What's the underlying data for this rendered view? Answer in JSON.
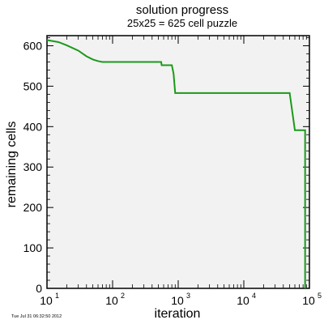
{
  "colors": {
    "background": "#ffffff",
    "plot_background": "#f2f2f2",
    "series": "#1a9a1a",
    "axis": "#000000"
  },
  "footer": {
    "timestamp": "Tue Jul 31 06:32:50 2012"
  },
  "chart_data": {
    "type": "line",
    "title": "solution progress",
    "subtitle": "25x25 = 625 cell puzzle",
    "xlabel": "iteration",
    "ylabel": "remaining cells",
    "xscale": "log",
    "xlim": [
      10,
      100000
    ],
    "ylim": [
      0,
      625
    ],
    "x_ticks": [
      {
        "value": 10,
        "base": "10",
        "exp": "1"
      },
      {
        "value": 100,
        "base": "10",
        "exp": "2"
      },
      {
        "value": 1000,
        "base": "10",
        "exp": "3"
      },
      {
        "value": 10000,
        "base": "10",
        "exp": "4"
      },
      {
        "value": 100000,
        "base": "10",
        "exp": "5"
      }
    ],
    "y_ticks": [
      0,
      100,
      200,
      300,
      400,
      500,
      600
    ],
    "grid": false,
    "legend": "none",
    "series": [
      {
        "x": [
          10,
          15,
          20,
          30,
          40,
          50,
          60,
          70,
          100,
          200,
          300,
          550,
          560,
          800,
          850,
          900,
          1000,
          2000,
          5000,
          10000,
          20000,
          50000,
          60000,
          80000,
          85000,
          86000,
          86001
        ],
        "y": [
          614,
          609,
          601,
          588,
          574,
          566,
          562,
          560,
          560,
          560,
          560,
          560,
          552,
          552,
          531,
          483,
          483,
          483,
          483,
          483,
          483,
          483,
          391,
          391,
          391,
          391,
          0
        ]
      }
    ]
  }
}
